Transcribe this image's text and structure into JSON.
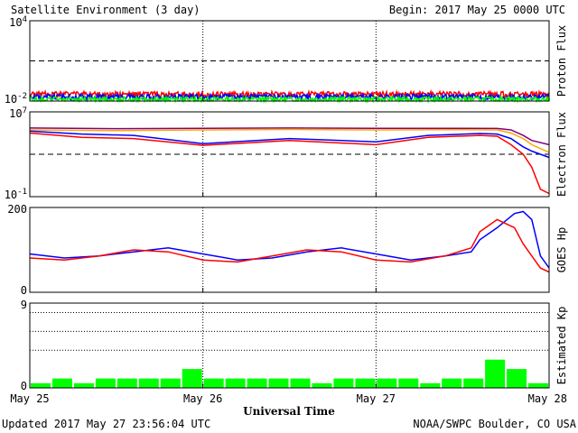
{
  "header": {
    "title": "Satellite Environment (3 day)",
    "begin": "Begin:  2017 May 25 0000 UTC"
  },
  "footer": {
    "updated": "Updated 2017 May 27 23:56:04 UTC",
    "credit": "NOAA/SWPC Boulder, CO USA",
    "xlabel": "Universal Time"
  },
  "xticks": [
    "May 25",
    "May 26",
    "May 27",
    "May 28"
  ],
  "colors": {
    "red": "#ff0000",
    "blue": "#0000ff",
    "green": "#00ff00",
    "orange": "#ffa500",
    "purple": "#800080"
  },
  "chart_data": [
    {
      "type": "line",
      "ylabel": "Proton Flux",
      "yscale": "log",
      "ylim": [
        0.01,
        10000
      ],
      "yticks": [
        {
          "base": "10",
          "exp": "4"
        },
        {
          "base": "10",
          "exp": "-2"
        }
      ],
      "threshold": 10,
      "x_range_days": [
        0,
        3
      ],
      "series": [
        {
          "color": "red",
          "level": 0.035
        },
        {
          "color": "blue",
          "level": 0.022
        },
        {
          "color": "green",
          "level": 0.014
        }
      ]
    },
    {
      "type": "line",
      "ylabel": "Electron Flux",
      "yscale": "log",
      "ylim": [
        0.1,
        10000000
      ],
      "yticks": [
        {
          "base": "10",
          "exp": "7"
        },
        {
          "base": "10",
          "exp": "-1"
        }
      ],
      "threshold": 1000,
      "series": [
        {
          "color": "purple",
          "x": [
            0,
            0.5,
            1,
            1.5,
            2,
            2.5,
            2.7,
            2.78,
            2.85,
            2.9,
            3.0
          ],
          "y": [
            300000,
            260000,
            280000,
            300000,
            280000,
            280000,
            270000,
            200000,
            60000,
            20000,
            8000
          ]
        },
        {
          "color": "orange",
          "x": [
            0,
            0.5,
            1,
            1.5,
            2,
            2.5,
            2.7,
            2.78,
            2.85,
            2.9,
            3.0
          ],
          "y": [
            200000,
            170000,
            200000,
            220000,
            200000,
            210000,
            200000,
            100000,
            30000,
            8000,
            1500
          ]
        },
        {
          "color": "blue",
          "x": [
            0,
            0.3,
            0.6,
            1,
            1.5,
            2,
            2.3,
            2.6,
            2.7,
            2.78,
            2.85,
            2.9,
            3.0
          ],
          "y": [
            150000,
            80000,
            60000,
            10000,
            30000,
            15000,
            60000,
            90000,
            80000,
            30000,
            5000,
            2000,
            500
          ]
        },
        {
          "color": "red",
          "x": [
            0,
            0.3,
            0.6,
            1,
            1.5,
            2,
            2.3,
            2.6,
            2.7,
            2.78,
            2.85,
            2.9,
            2.95,
            3.0
          ],
          "y": [
            100000,
            40000,
            30000,
            7000,
            20000,
            8000,
            40000,
            60000,
            50000,
            8000,
            1000,
            60,
            0.5,
            0.2
          ]
        }
      ]
    },
    {
      "type": "line",
      "ylabel": "GOES Hp",
      "ylim": [
        0,
        210
      ],
      "yticks": [
        "200",
        "0"
      ],
      "series": [
        {
          "color": "blue",
          "x": [
            0,
            0.2,
            0.4,
            0.6,
            0.8,
            1.0,
            1.2,
            1.4,
            1.6,
            1.8,
            2.0,
            2.2,
            2.4,
            2.55,
            2.6,
            2.7,
            2.8,
            2.85,
            2.9,
            2.95,
            3.0
          ],
          "y": [
            95,
            85,
            90,
            100,
            110,
            95,
            80,
            85,
            100,
            110,
            95,
            80,
            90,
            100,
            130,
            160,
            195,
            200,
            180,
            90,
            60
          ]
        },
        {
          "color": "red",
          "x": [
            0,
            0.2,
            0.4,
            0.6,
            0.8,
            1.0,
            1.2,
            1.4,
            1.6,
            1.8,
            2.0,
            2.2,
            2.4,
            2.55,
            2.6,
            2.7,
            2.8,
            2.85,
            2.9,
            2.95,
            3.0
          ],
          "y": [
            85,
            80,
            90,
            105,
            100,
            80,
            75,
            90,
            105,
            100,
            80,
            75,
            90,
            110,
            150,
            180,
            160,
            120,
            90,
            60,
            50
          ]
        }
      ]
    },
    {
      "type": "bar",
      "ylabel": "Estimated Kp",
      "ylim": [
        0,
        9
      ],
      "yticks": [
        "9",
        "0"
      ],
      "grid": [
        4,
        6,
        8
      ],
      "values": [
        0.5,
        1,
        0.5,
        1,
        1,
        1,
        1,
        2,
        1,
        1,
        1,
        1,
        1,
        0.5,
        1,
        1,
        1,
        1,
        0.5,
        1,
        1,
        3,
        2,
        0.5
      ]
    }
  ]
}
